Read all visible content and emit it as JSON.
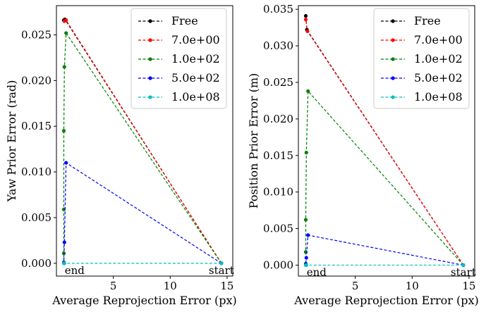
{
  "chart_data": [
    {
      "type": "line",
      "xlabel": "Average Reprojection Error (px)",
      "ylabel": "Yaw Prior Error (rad)",
      "xlim": [
        0.0,
        15.5
      ],
      "ylim": [
        -0.0014,
        0.0282
      ],
      "xticks": [
        5,
        10,
        15
      ],
      "yticks": [
        0.0,
        0.005,
        0.01,
        0.015,
        0.02,
        0.025
      ],
      "tick_labels_y": [
        "0.000",
        "0.005",
        "0.010",
        "0.015",
        "0.020",
        "0.025"
      ],
      "tick_labels_x": [
        "5",
        "10",
        "15"
      ],
      "grid": false,
      "legend_position": "top-right",
      "annotations": [
        {
          "text": "end",
          "x": 1.1,
          "y": 0.0
        },
        {
          "text": "start",
          "x": 14.5,
          "y": 0.0
        }
      ],
      "series": [
        {
          "name": "Free",
          "color": "#000000",
          "points": [
            [
              14.5,
              0.0
            ],
            [
              0.75,
              0.0267
            ],
            [
              0.65,
              0.0266
            ]
          ]
        },
        {
          "name": "7.0e+00",
          "color": "#ff0000",
          "points": [
            [
              14.5,
              0.0
            ],
            [
              0.85,
              0.0266
            ],
            [
              0.7,
              0.0265
            ]
          ]
        },
        {
          "name": "1.0e+02",
          "color": "#008000",
          "points": [
            [
              14.5,
              0.0
            ],
            [
              0.85,
              0.0252
            ],
            [
              0.7,
              0.0215
            ],
            [
              0.65,
              0.0145
            ],
            [
              0.65,
              0.0059
            ],
            [
              0.65,
              0.0011
            ],
            [
              0.65,
              0.0001
            ]
          ]
        },
        {
          "name": "5.0e+02",
          "color": "#0000ff",
          "points": [
            [
              14.5,
              0.0
            ],
            [
              0.85,
              0.011
            ],
            [
              0.7,
              0.0023
            ],
            [
              0.65,
              0.0001
            ]
          ]
        },
        {
          "name": "1.0e+08",
          "color": "#00bfbf",
          "points": [
            [
              14.5,
              0.0
            ],
            [
              0.7,
              0.0
            ],
            [
              0.65,
              0.0
            ]
          ]
        }
      ]
    },
    {
      "type": "line",
      "xlabel": "Average Reprojection Error (px)",
      "ylabel": "Position Prior Error (m)",
      "xlim": [
        0.0,
        15.5
      ],
      "ylim": [
        -0.0015,
        0.0355
      ],
      "xticks": [
        5,
        10,
        15
      ],
      "yticks": [
        0.0,
        0.005,
        0.01,
        0.015,
        0.02,
        0.025,
        0.03,
        0.035
      ],
      "tick_labels_y": [
        "0.000",
        "0.005",
        "0.010",
        "0.015",
        "0.020",
        "0.025",
        "0.030",
        "0.035"
      ],
      "tick_labels_x": [
        "5",
        "10",
        "15"
      ],
      "grid": false,
      "legend_position": "top-right",
      "annotations": [
        {
          "text": "end",
          "x": 1.1,
          "y": 0.0
        },
        {
          "text": "start",
          "x": 14.5,
          "y": 0.0
        }
      ],
      "series": [
        {
          "name": "Free",
          "color": "#000000",
          "points": [
            [
              14.5,
              0.0
            ],
            [
              0.75,
              0.0322
            ],
            [
              0.65,
              0.0341
            ]
          ]
        },
        {
          "name": "7.0e+00",
          "color": "#ff0000",
          "points": [
            [
              14.5,
              0.0
            ],
            [
              0.8,
              0.032
            ],
            [
              0.65,
              0.0336
            ]
          ]
        },
        {
          "name": "1.0e+02",
          "color": "#008000",
          "points": [
            [
              14.5,
              0.0
            ],
            [
              0.85,
              0.0238
            ],
            [
              0.7,
              0.0154
            ],
            [
              0.65,
              0.0062
            ],
            [
              0.65,
              0.0018
            ],
            [
              0.65,
              0.0002
            ]
          ]
        },
        {
          "name": "5.0e+02",
          "color": "#0000ff",
          "points": [
            [
              14.5,
              0.0
            ],
            [
              0.85,
              0.0041
            ],
            [
              0.7,
              0.001
            ],
            [
              0.65,
              0.0001
            ]
          ]
        },
        {
          "name": "1.0e+08",
          "color": "#00bfbf",
          "points": [
            [
              14.5,
              0.0
            ],
            [
              0.7,
              0.0
            ],
            [
              0.65,
              0.0
            ]
          ]
        }
      ]
    }
  ]
}
